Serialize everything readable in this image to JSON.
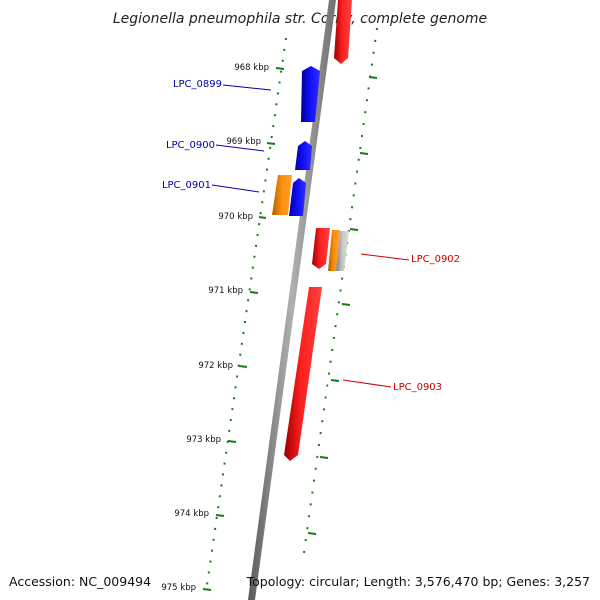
{
  "title": "Legionella pneumophila str. Corby, complete genome",
  "footer": {
    "accession": "Accession: NC_009494",
    "topology": "Topology: circular; Length: 3,576,470 bp; Genes: 3,257"
  },
  "ticks": [
    {
      "kbp": 968,
      "label": "968 kbp"
    },
    {
      "kbp": 969,
      "label": "969 kbp"
    },
    {
      "kbp": 970,
      "label": "970 kbp"
    },
    {
      "kbp": 971,
      "label": "971 kbp"
    },
    {
      "kbp": 972,
      "label": "972 kbp"
    },
    {
      "kbp": 973,
      "label": "973 kbp"
    },
    {
      "kbp": 974,
      "label": "974 kbp"
    },
    {
      "kbp": 975,
      "label": "975 kbp"
    }
  ],
  "gene_labels": [
    {
      "id": "LPC_0899",
      "text": "LPC_0899",
      "color": "#0000aa"
    },
    {
      "id": "LPC_0900",
      "text": "LPC_0900",
      "color": "#0000aa"
    },
    {
      "id": "LPC_0901",
      "text": "LPC_0901",
      "color": "#0000aa"
    },
    {
      "id": "LPC_0902",
      "text": "LPC_0902",
      "color": "#cc0000"
    },
    {
      "id": "LPC_0903",
      "text": "LPC_0903",
      "color": "#cc0000"
    }
  ],
  "colors": {
    "forward_gene": "#ff0000",
    "reverse_gene": "#0000ff",
    "orange_feature": "#ff8c00",
    "grey_feature": "#b0b0b0",
    "backbone": "#8a8a8a",
    "tick": "#1a7a1a"
  }
}
